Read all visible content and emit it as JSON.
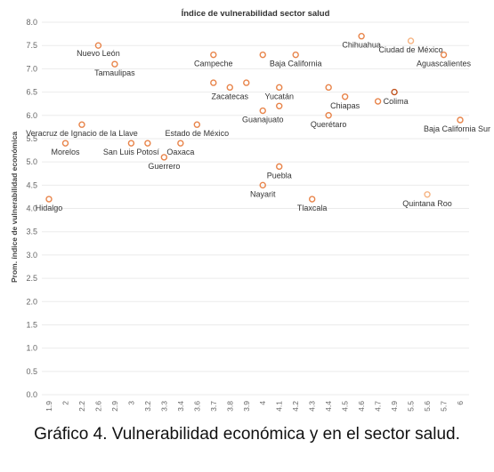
{
  "caption": "Gráfico 4. Vulnerabilidad económica y en el sector salud.",
  "chart_data": {
    "type": "scatter",
    "title": "Índice de vulnerabilidad sector salud",
    "xlabel": "",
    "ylabel": "Prom. índice de vulnerabilidad económica",
    "x_ticks": [
      "1.9",
      "2",
      "2.2",
      "2.6",
      "2.9",
      "3",
      "3.2",
      "3.3",
      "3.4",
      "3.6",
      "3.7",
      "3.8",
      "3.9",
      "4",
      "4.1",
      "4.2",
      "4.3",
      "4.4",
      "4.5",
      "4.6",
      "4.7",
      "4.9",
      "5.5",
      "5.6",
      "5.7",
      "6"
    ],
    "y_ticks": [
      "0.0",
      "0.5",
      "1.0",
      "1.5",
      "2.0",
      "2.5",
      "3.0",
      "3.5",
      "4.0",
      "4.5",
      "5.0",
      "5.5",
      "6.0",
      "6.5",
      "7.0",
      "7.5",
      "8.0"
    ],
    "ylim": [
      0,
      8
    ],
    "grid": true,
    "points": [
      {
        "label": "Hidalgo",
        "x": "1.9",
        "y": 4.2
      },
      {
        "label": "Morelos",
        "x": "2",
        "y": 5.4
      },
      {
        "label": "Veracruz de Ignacio de la Llave",
        "x": "2.2",
        "y": 5.8
      },
      {
        "label": "Nuevo León",
        "x": "2.6",
        "y": 7.5
      },
      {
        "label": "Tamaulipas",
        "x": "2.9",
        "y": 7.1
      },
      {
        "label": "San Luis Potosí",
        "x": "3",
        "y": 5.4
      },
      {
        "label": "",
        "x": "3.2",
        "y": 5.4
      },
      {
        "label": "Guerrero",
        "x": "3.3",
        "y": 5.1
      },
      {
        "label": "Oaxaca",
        "x": "3.4",
        "y": 5.4
      },
      {
        "label": "Estado de México",
        "x": "3.6",
        "y": 5.8
      },
      {
        "label": "Campeche",
        "x": "3.7",
        "y": 7.3
      },
      {
        "label": "",
        "x": "3.7",
        "y": 6.7
      },
      {
        "label": "Zacatecas",
        "x": "3.8",
        "y": 6.6
      },
      {
        "label": "",
        "x": "3.9",
        "y": 6.7
      },
      {
        "label": "",
        "x": "4",
        "y": 7.3
      },
      {
        "label": "Guanajuato",
        "x": "4",
        "y": 6.1
      },
      {
        "label": "Nayarit",
        "x": "4",
        "y": 4.5
      },
      {
        "label": "Yucatán",
        "x": "4.1",
        "y": 6.6
      },
      {
        "label": "",
        "x": "4.1",
        "y": 6.2
      },
      {
        "label": "Puebla",
        "x": "4.1",
        "y": 4.9
      },
      {
        "label": "Baja California",
        "x": "4.2",
        "y": 7.3
      },
      {
        "label": "Tlaxcala",
        "x": "4.3",
        "y": 4.2
      },
      {
        "label": "",
        "x": "4.4",
        "y": 6.6
      },
      {
        "label": "Querétaro",
        "x": "4.4",
        "y": 6.0
      },
      {
        "label": "Chiapas",
        "x": "4.5",
        "y": 6.4
      },
      {
        "label": "Chihuahua",
        "x": "4.6",
        "y": 7.7
      },
      {
        "label": "Colima",
        "x": "4.7",
        "y": 6.3
      },
      {
        "label": "",
        "x": "4.9",
        "y": 6.5
      },
      {
        "label": "Ciudad de México",
        "x": "5.5",
        "y": 7.6
      },
      {
        "label": "Quintana Roo",
        "x": "5.6",
        "y": 4.3
      },
      {
        "label": "Aguascalientes",
        "x": "5.7",
        "y": 7.3
      },
      {
        "label": "Baja California Sur",
        "x": "6",
        "y": 5.9
      }
    ]
  }
}
